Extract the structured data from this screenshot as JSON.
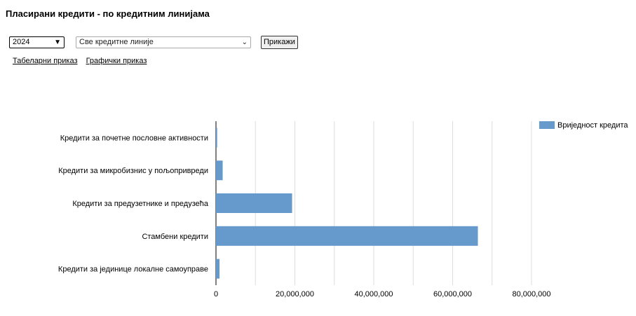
{
  "page": {
    "title": "Пласирани кредити - по кредитним линијама"
  },
  "filters": {
    "year_value": "2024",
    "credit_line_value": "Све кредитне линије",
    "submit_label": "Прикажи"
  },
  "views": {
    "table_label": "Табеларни приказ",
    "chart_label": "Графички приказ"
  },
  "colors": {
    "bar": "#6699cc",
    "grid": "#dddddd",
    "axis": "#000000"
  },
  "chart_data": {
    "type": "bar",
    "orientation": "horizontal",
    "categories": [
      "Кредити за почетне пословне активности",
      "Кредити за микробизнис у пољопривреди",
      "Кредити за предузетнике и предузећа",
      "Стамбени кредити",
      "Кредити за јединице локалне самоуправе"
    ],
    "series": [
      {
        "name": "Вриједност кредита",
        "values": [
          300000,
          1700000,
          19300000,
          66400000,
          900000
        ]
      }
    ],
    "xlim": [
      0,
      80000000
    ],
    "x_ticks": [
      "0",
      "20,000,000",
      "40,000,000",
      "60,000,000",
      "80,000,000"
    ],
    "grid": true,
    "legend_position": "top-right"
  }
}
